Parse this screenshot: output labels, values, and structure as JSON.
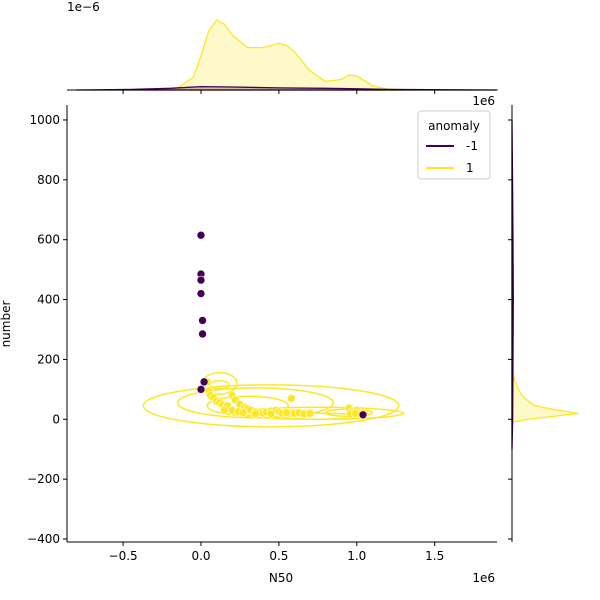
{
  "chart_data": {
    "type": "scatter",
    "subtype": "jointplot",
    "title": "",
    "xlabel": "N50",
    "ylabel": "number",
    "x_offset_label": "1e6",
    "y_offset_label": "1e6",
    "top_marginal_offset_label": "1e−6",
    "xlim": [
      -0.86,
      1.9
    ],
    "ylim": [
      -410,
      1050
    ],
    "x_ticks": [
      -0.5,
      0.0,
      0.5,
      1.0,
      1.5
    ],
    "x_tick_labels": [
      "−0.5",
      "0.0",
      "0.5",
      "1.0",
      "1.5"
    ],
    "y_ticks": [
      -400,
      -200,
      0,
      200,
      400,
      600,
      800,
      1000
    ],
    "y_tick_labels": [
      "−400",
      "−200",
      "0",
      "200",
      "400",
      "600",
      "800",
      "1000"
    ],
    "legend": {
      "title": "anomaly",
      "placement": "top-right",
      "entries": [
        {
          "label": "-1",
          "color": "#440154"
        },
        {
          "label": "1",
          "color": "#fde725"
        }
      ]
    },
    "series": [
      {
        "name": "-1",
        "color": "#440154",
        "points": [
          [
            0.0,
            615
          ],
          [
            0.0,
            485
          ],
          [
            0.0,
            465
          ],
          [
            0.0,
            420
          ],
          [
            0.01,
            330
          ],
          [
            0.01,
            285
          ],
          [
            0.02,
            125
          ],
          [
            0.0,
            100
          ],
          [
            1.04,
            15
          ]
        ]
      },
      {
        "name": "1",
        "color": "#fde725",
        "points": [
          [
            0.04,
            125
          ],
          [
            0.05,
            95
          ],
          [
            0.06,
            80
          ],
          [
            0.08,
            72
          ],
          [
            0.1,
            60
          ],
          [
            0.12,
            55
          ],
          [
            0.14,
            48
          ],
          [
            0.17,
            45
          ],
          [
            0.2,
            80
          ],
          [
            0.22,
            65
          ],
          [
            0.25,
            50
          ],
          [
            0.28,
            40
          ],
          [
            0.3,
            35
          ],
          [
            0.32,
            30
          ],
          [
            0.2,
            30
          ],
          [
            0.24,
            25
          ],
          [
            0.35,
            25
          ],
          [
            0.38,
            22
          ],
          [
            0.4,
            20
          ],
          [
            0.42,
            25
          ],
          [
            0.45,
            28
          ],
          [
            0.48,
            30
          ],
          [
            0.5,
            25
          ],
          [
            0.52,
            20
          ],
          [
            0.55,
            22
          ],
          [
            0.58,
            70
          ],
          [
            0.6,
            20
          ],
          [
            0.63,
            22
          ],
          [
            0.66,
            18
          ],
          [
            0.7,
            20
          ],
          [
            0.45,
            18
          ],
          [
            0.35,
            18
          ],
          [
            0.27,
            22
          ],
          [
            0.95,
            38
          ],
          [
            0.97,
            25
          ],
          [
            1.0,
            30
          ],
          [
            1.02,
            18
          ],
          [
            0.96,
            18
          ],
          [
            0.99,
            20
          ],
          [
            0.15,
            30
          ]
        ]
      }
    ],
    "kde_contours": [
      {
        "series": "1",
        "color": "#fde725",
        "levels": [
          {
            "center": [
              0.12,
              120
            ],
            "rx": 0.11,
            "ry": 36
          },
          {
            "center": [
              0.35,
              55
            ],
            "rx": 0.5,
            "ry": 50
          },
          {
            "center": [
              0.45,
              45
            ],
            "rx": 0.82,
            "ry": 70
          },
          {
            "center": [
              0.75,
              20
            ],
            "rx": 0.55,
            "ry": 20
          },
          {
            "center": [
              0.3,
              45
            ],
            "rx": 0.26,
            "ry": 32
          },
          {
            "center": [
              0.12,
              115
            ],
            "rx": 0.06,
            "ry": 14
          },
          {
            "center": [
              0.95,
              22
            ],
            "rx": 0.15,
            "ry": 12
          },
          {
            "center": [
              0.6,
              22
            ],
            "rx": 0.12,
            "ry": 10
          },
          {
            "center": [
              0.75,
              10
            ],
            "rx": 0.27,
            "ry": 10
          }
        ]
      }
    ],
    "marginal_x": {
      "curves": [
        {
          "series": "1",
          "color": "#fde725",
          "x": [
            -0.3,
            -0.15,
            -0.05,
            0.0,
            0.05,
            0.1,
            0.15,
            0.2,
            0.3,
            0.4,
            0.5,
            0.55,
            0.6,
            0.7,
            0.8,
            0.9,
            0.95,
            1.0,
            1.05,
            1.1,
            1.2,
            1.3
          ],
          "density": [
            0.0,
            0.05,
            0.3,
            0.8,
            1.4,
            1.65,
            1.55,
            1.3,
            1.0,
            1.0,
            1.1,
            1.05,
            0.9,
            0.45,
            0.2,
            0.25,
            0.35,
            0.33,
            0.22,
            0.1,
            0.02,
            0.0
          ]
        },
        {
          "series": "-1",
          "color": "#440154",
          "x": [
            -0.8,
            -0.5,
            -0.2,
            0.0,
            0.2,
            0.5,
            0.8,
            1.0,
            1.2,
            1.6,
            1.9
          ],
          "density": [
            0.0,
            0.01,
            0.04,
            0.08,
            0.07,
            0.05,
            0.04,
            0.03,
            0.015,
            0.004,
            0.0
          ]
        }
      ],
      "ymax": 1.7
    },
    "marginal_y": {
      "curves": [
        {
          "series": "1",
          "color": "#fde725",
          "y": [
            -10,
            0,
            10,
            20,
            30,
            45,
            60,
            80,
            100,
            130,
            160
          ],
          "density": [
            0.0,
            0.25,
            0.65,
            1.0,
            0.7,
            0.35,
            0.25,
            0.15,
            0.1,
            0.04,
            0.0
          ]
        },
        {
          "series": "-1",
          "color": "#440154",
          "y": [
            -100,
            0,
            200,
            400,
            600,
            800,
            1000
          ],
          "density": [
            0.0,
            0.01,
            0.015,
            0.02,
            0.015,
            0.008,
            0.0
          ]
        }
      ],
      "xmax": 1.05
    },
    "grid": false
  }
}
